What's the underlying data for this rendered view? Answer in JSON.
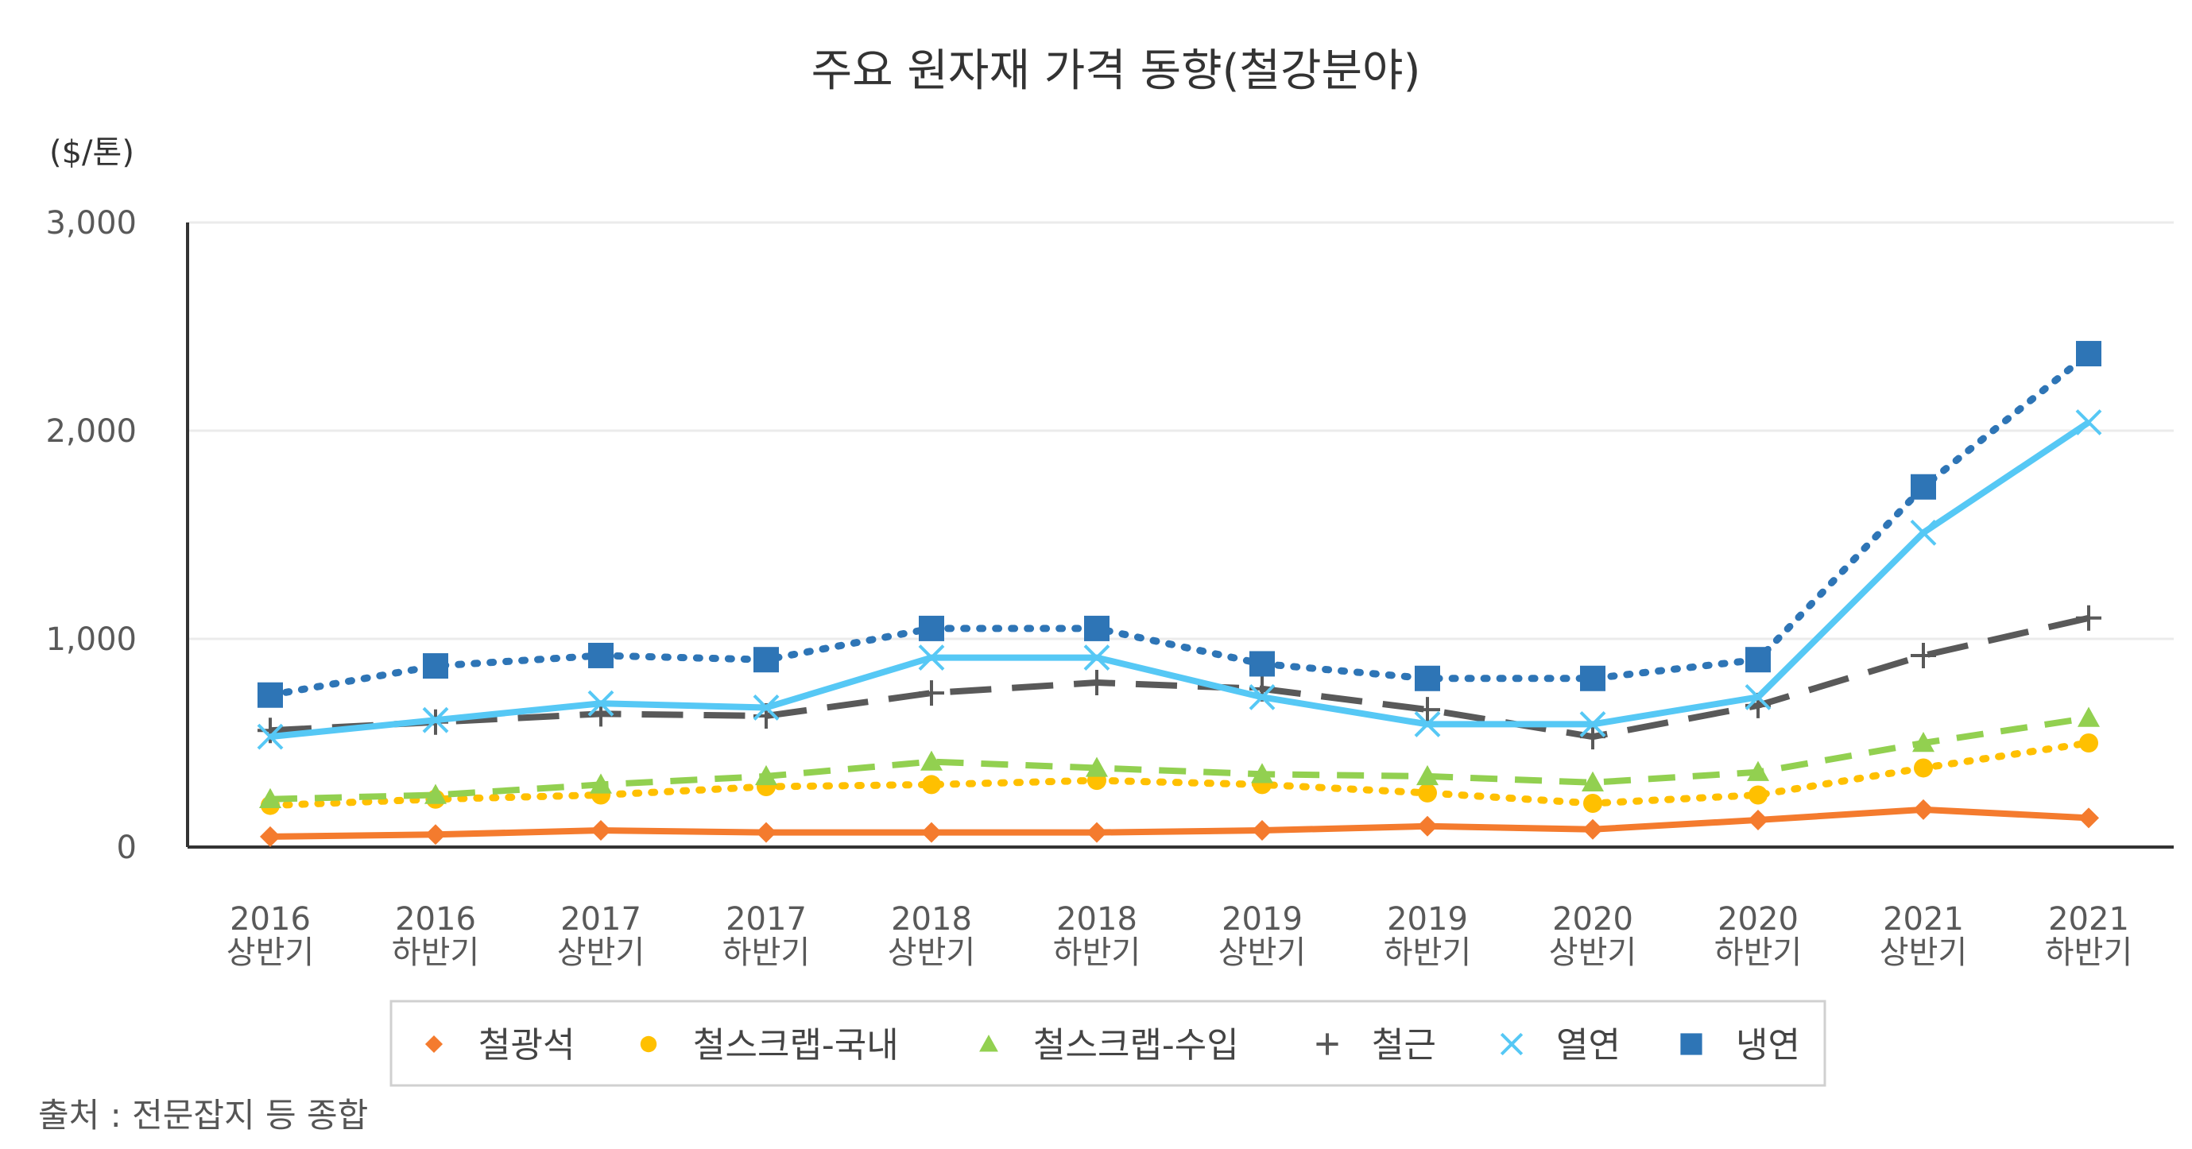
{
  "chart_data": {
    "type": "line",
    "title": "주요 원자재 가격 동향(철강분야)",
    "unit_label": "($/톤)",
    "source": "출처 : 전문잡지 등 종합",
    "ylim": [
      0,
      3000
    ],
    "yticks": [
      "0",
      "1,000",
      "2,000",
      "3,000"
    ],
    "ytick_values": [
      0,
      1000,
      2000,
      3000
    ],
    "grid": true,
    "legend_position": "bottom",
    "categories": [
      [
        "2016",
        "상반기"
      ],
      [
        "2016",
        "하반기"
      ],
      [
        "2017",
        "상반기"
      ],
      [
        "2017",
        "하반기"
      ],
      [
        "2018",
        "상반기"
      ],
      [
        "2018",
        "하반기"
      ],
      [
        "2019",
        "상반기"
      ],
      [
        "2019",
        "하반기"
      ],
      [
        "2020",
        "상반기"
      ],
      [
        "2020",
        "하반기"
      ],
      [
        "2021",
        "상반기"
      ],
      [
        "2021",
        "하반기"
      ]
    ],
    "series": [
      {
        "name": "철광석",
        "color": "#F47B2E",
        "marker": "diamond",
        "dash": "solid",
        "values": [
          50,
          60,
          80,
          70,
          70,
          70,
          80,
          100,
          85,
          130,
          180,
          140
        ]
      },
      {
        "name": "철스크랩-국내",
        "color": "#FFC000",
        "marker": "circle",
        "dash": "dot",
        "values": [
          200,
          230,
          250,
          290,
          300,
          320,
          300,
          260,
          210,
          250,
          380,
          500
        ]
      },
      {
        "name": "철스크랩-수입",
        "color": "#92D050",
        "marker": "triangle",
        "dash": "dash",
        "values": [
          230,
          250,
          300,
          340,
          410,
          380,
          350,
          340,
          310,
          360,
          500,
          620
        ]
      },
      {
        "name": "철근",
        "color": "#595959",
        "marker": "plus",
        "dash": "longdash",
        "values": [
          560,
          600,
          640,
          630,
          740,
          790,
          760,
          660,
          530,
          680,
          920,
          1100
        ]
      },
      {
        "name": "열연",
        "color": "#56C8F5",
        "marker": "x",
        "dash": "solid",
        "values": [
          530,
          610,
          690,
          670,
          910,
          910,
          720,
          590,
          590,
          720,
          1510,
          2040
        ]
      },
      {
        "name": "냉연",
        "color": "#2E75B6",
        "marker": "square",
        "dash": "dot",
        "values": [
          730,
          870,
          920,
          900,
          1050,
          1050,
          880,
          810,
          810,
          900,
          1730,
          2370
        ]
      }
    ]
  }
}
